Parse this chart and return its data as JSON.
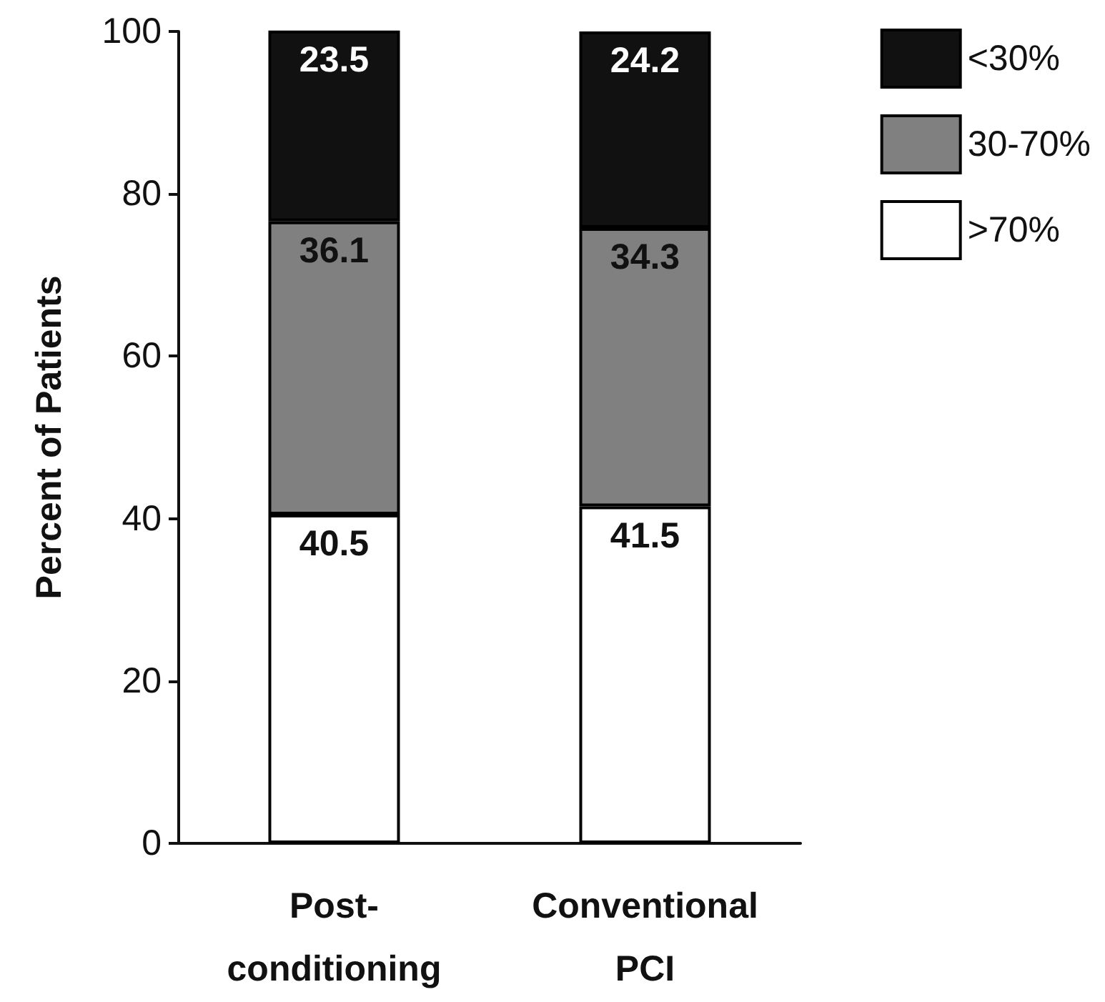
{
  "chart_data": {
    "type": "bar",
    "stacked": true,
    "ylabel": "Percent of Patients",
    "categories": [
      "Post-\nconditioning",
      "Conventional\nPCI"
    ],
    "series": [
      {
        "name": ">70%",
        "color": "#ffffff",
        "values": [
          40.5,
          41.5
        ]
      },
      {
        "name": "30-70%",
        "color": "#808080",
        "values": [
          36.1,
          34.3
        ]
      },
      {
        "name": "<30%",
        "color": "#111111",
        "values": [
          23.5,
          24.2
        ]
      }
    ],
    "ylim": [
      0,
      100
    ],
    "yticks": [
      0,
      20,
      40,
      60,
      80,
      100
    ],
    "grid": false,
    "legend": "top right",
    "data_labels": true
  }
}
